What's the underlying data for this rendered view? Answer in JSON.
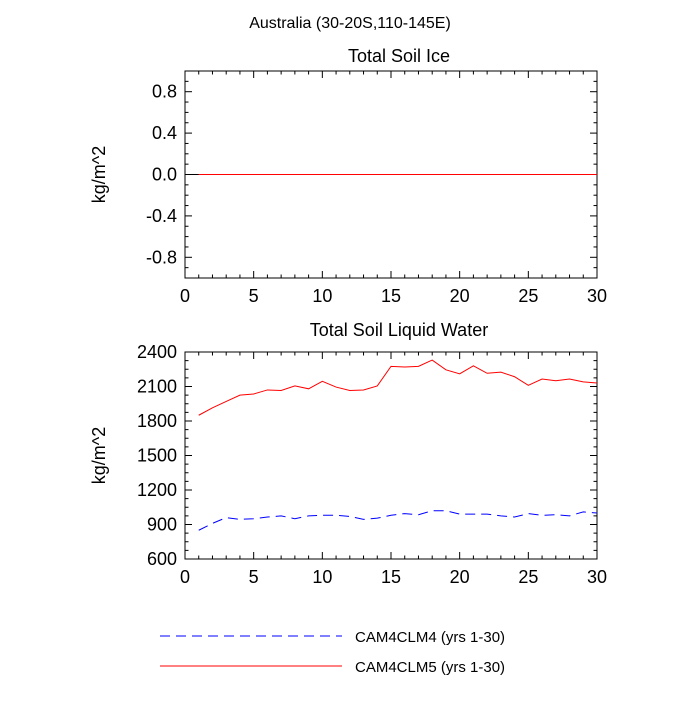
{
  "figure_title": "Australia (30-20S,110-145E)",
  "legend": [
    {
      "label": "CAM4CLM4 (yrs 1-30)",
      "color": "#0000ff",
      "dash": "dashed"
    },
    {
      "label": "CAM4CLM5 (yrs 1-30)",
      "color": "#ff0000",
      "dash": "solid"
    }
  ],
  "chart_data": [
    {
      "type": "line",
      "title": "Total Soil Ice",
      "xlabel": "",
      "ylabel": "kg/m^2",
      "xlim": [
        0,
        30
      ],
      "ylim": [
        -1,
        1
      ],
      "xticks": [
        0,
        5,
        10,
        15,
        20,
        25,
        30
      ],
      "yticks": [
        -0.8,
        -0.4,
        0.0,
        0.4,
        0.8
      ],
      "ytick_labels": [
        "-0.8",
        "-0.4",
        "0.0",
        "0.4",
        "0.8"
      ],
      "x": [
        1,
        2,
        3,
        4,
        5,
        6,
        7,
        8,
        9,
        10,
        11,
        12,
        13,
        14,
        15,
        16,
        17,
        18,
        19,
        20,
        21,
        22,
        23,
        24,
        25,
        26,
        27,
        28,
        29,
        30
      ],
      "series": [
        {
          "name": "CAM4CLM4 (yrs 1-30)",
          "color": "#0000ff",
          "dash": "dashed",
          "values": [
            0,
            0,
            0,
            0,
            0,
            0,
            0,
            0,
            0,
            0,
            0,
            0,
            0,
            0,
            0,
            0,
            0,
            0,
            0,
            0,
            0,
            0,
            0,
            0,
            0,
            0,
            0,
            0,
            0,
            0
          ]
        },
        {
          "name": "CAM4CLM5 (yrs 1-30)",
          "color": "#ff0000",
          "dash": "solid",
          "values": [
            0,
            0,
            0,
            0,
            0,
            0,
            0,
            0,
            0,
            0,
            0,
            0,
            0,
            0,
            0,
            0,
            0,
            0,
            0,
            0,
            0,
            0,
            0,
            0,
            0,
            0,
            0,
            0,
            0,
            0
          ]
        }
      ],
      "zero_line": true
    },
    {
      "type": "line",
      "title": "Total Soil Liquid Water",
      "xlabel": "",
      "ylabel": "kg/m^2",
      "xlim": [
        0,
        30
      ],
      "ylim": [
        600,
        2400
      ],
      "xticks": [
        0,
        5,
        10,
        15,
        20,
        25,
        30
      ],
      "yticks": [
        600,
        900,
        1200,
        1500,
        1800,
        2100,
        2400
      ],
      "ytick_labels": [
        "600",
        "900",
        "1200",
        "1500",
        "1800",
        "2100",
        "2400"
      ],
      "x": [
        1,
        2,
        3,
        4,
        5,
        6,
        7,
        8,
        9,
        10,
        11,
        12,
        13,
        14,
        15,
        16,
        17,
        18,
        19,
        20,
        21,
        22,
        23,
        24,
        25,
        26,
        27,
        28,
        29,
        30
      ],
      "series": [
        {
          "name": "CAM4CLM4 (yrs 1-30)",
          "color": "#0000ff",
          "dash": "dashed",
          "values": [
            850,
            910,
            960,
            945,
            950,
            965,
            975,
            950,
            975,
            980,
            980,
            970,
            945,
            955,
            980,
            995,
            985,
            1020,
            1020,
            990,
            990,
            990,
            975,
            965,
            995,
            980,
            985,
            975,
            1010,
            1000
          ]
        },
        {
          "name": "CAM4CLM5 (yrs 1-30)",
          "color": "#ff0000",
          "dash": "solid",
          "values": [
            1850,
            1915,
            1970,
            2025,
            2035,
            2070,
            2065,
            2105,
            2080,
            2145,
            2095,
            2065,
            2070,
            2105,
            2275,
            2270,
            2275,
            2330,
            2245,
            2210,
            2280,
            2215,
            2225,
            2185,
            2110,
            2165,
            2150,
            2165,
            2140,
            2130
          ]
        }
      ],
      "zero_line": false
    }
  ]
}
